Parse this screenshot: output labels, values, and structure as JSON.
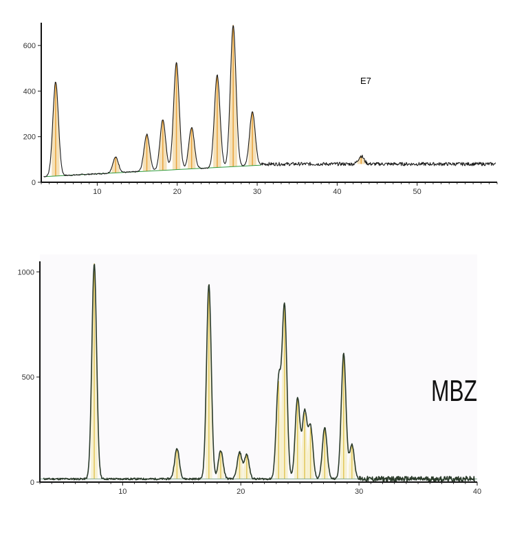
{
  "chart_data": [
    {
      "type": "line",
      "title": "",
      "annotation": "E7",
      "xlabel": "",
      "ylabel": "",
      "xlim": [
        3,
        60
      ],
      "ylim": [
        0,
        700
      ],
      "xticks": [
        10,
        20,
        30,
        40,
        50
      ],
      "yticks": [
        0,
        200,
        400,
        600
      ],
      "colors": {
        "trace": "#1a1a1a",
        "peak_marker": "#e8a23a",
        "baseline": "#2e9a3c",
        "fill": "#f3d9a8"
      },
      "baseline": [
        [
          3.5,
          25
        ],
        [
          30.5,
          75
        ]
      ],
      "noise_floor": {
        "x_start": 30.5,
        "x_end": 60,
        "level": 80,
        "amplitude": 15
      },
      "peaks": [
        {
          "x": 4.8,
          "y": 440
        },
        {
          "x": 12.3,
          "y": 110
        },
        {
          "x": 16.2,
          "y": 210
        },
        {
          "x": 18.2,
          "y": 275
        },
        {
          "x": 19.9,
          "y": 525
        },
        {
          "x": 21.8,
          "y": 240
        },
        {
          "x": 25.0,
          "y": 470
        },
        {
          "x": 27.0,
          "y": 690
        },
        {
          "x": 29.4,
          "y": 310
        },
        {
          "x": 43.0,
          "y": 115
        }
      ]
    },
    {
      "type": "line",
      "title": "",
      "annotation": "MBZ",
      "xlabel": "",
      "ylabel": "",
      "xlim": [
        3,
        40
      ],
      "ylim": [
        0,
        1050
      ],
      "xticks": [
        10,
        20,
        30,
        40
      ],
      "yticks": [
        0,
        500,
        1000
      ],
      "colors": {
        "trace": "#2a3a2a",
        "peak_marker": "#e2c75a",
        "baseline": "#7fa88f",
        "fill": "#f6efc6"
      },
      "baseline": [
        [
          3,
          15
        ],
        [
          40,
          15
        ]
      ],
      "noise_floor": {
        "x_start": 30,
        "x_end": 40,
        "level": 50,
        "amplitude": 25
      },
      "peaks": [
        {
          "x": 7.6,
          "y": 1040
        },
        {
          "x": 14.6,
          "y": 160
        },
        {
          "x": 17.3,
          "y": 940
        },
        {
          "x": 18.3,
          "y": 150
        },
        {
          "x": 19.9,
          "y": 140
        },
        {
          "x": 20.5,
          "y": 130
        },
        {
          "x": 23.2,
          "y": 480
        },
        {
          "x": 23.7,
          "y": 830
        },
        {
          "x": 24.8,
          "y": 400
        },
        {
          "x": 25.4,
          "y": 330
        },
        {
          "x": 25.9,
          "y": 260
        },
        {
          "x": 27.1,
          "y": 260
        },
        {
          "x": 28.7,
          "y": 610
        },
        {
          "x": 29.4,
          "y": 180
        }
      ]
    }
  ]
}
